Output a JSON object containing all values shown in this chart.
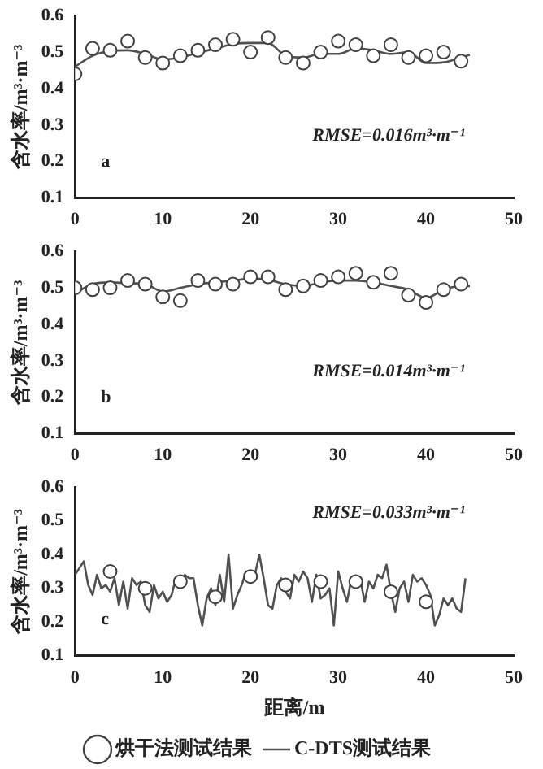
{
  "chart_data": [
    {
      "type": "line",
      "ylabel": "含水率/m³·m⁻³",
      "xlim": [
        0,
        50
      ],
      "xticks": [
        0,
        10,
        20,
        30,
        40,
        50
      ],
      "ylim": [
        0.1,
        0.6
      ],
      "yticks": [
        0.1,
        0.2,
        0.3,
        0.4,
        0.5,
        0.6
      ],
      "grid": false,
      "legend": false,
      "annotations": [
        "a",
        "RMSE=0.016m³·m⁻¹"
      ],
      "series": [
        {
          "type": "scatter",
          "marker": "circle",
          "color": "#404040",
          "x": [
            0,
            2,
            4,
            6,
            8,
            10,
            12,
            14,
            16,
            18,
            20,
            22,
            24,
            26,
            28,
            30,
            32,
            34,
            36,
            38,
            40,
            42,
            44
          ],
          "values": [
            0.44,
            0.51,
            0.505,
            0.53,
            0.485,
            0.47,
            0.49,
            0.505,
            0.52,
            0.535,
            0.5,
            0.54,
            0.485,
            0.47,
            0.5,
            0.53,
            0.52,
            0.49,
            0.52,
            0.485,
            0.49,
            0.5,
            0.475
          ]
        },
        {
          "type": "line",
          "marker": "none",
          "color": "#505050",
          "x": [
            0,
            2,
            4,
            6,
            8,
            10,
            12,
            14,
            16,
            18,
            20,
            22,
            24,
            26,
            28,
            30,
            32,
            34,
            36,
            38,
            40,
            42,
            44,
            45
          ],
          "values": [
            0.46,
            0.49,
            0.503,
            0.505,
            0.495,
            0.48,
            0.485,
            0.498,
            0.51,
            0.522,
            0.525,
            0.525,
            0.49,
            0.485,
            0.495,
            0.495,
            0.51,
            0.505,
            0.495,
            0.5,
            0.47,
            0.472,
            0.485,
            0.493
          ]
        }
      ]
    },
    {
      "type": "line",
      "ylabel": "含水率/m³·m⁻³",
      "xlim": [
        0,
        50
      ],
      "xticks": [
        0,
        10,
        20,
        30,
        40,
        50
      ],
      "ylim": [
        0.1,
        0.6
      ],
      "yticks": [
        0.1,
        0.2,
        0.3,
        0.4,
        0.5,
        0.6
      ],
      "grid": false,
      "legend": false,
      "annotations": [
        "b",
        "RMSE=0.014m³·m⁻¹"
      ],
      "series": [
        {
          "type": "scatter",
          "marker": "circle",
          "color": "#404040",
          "x": [
            0,
            2,
            4,
            6,
            8,
            10,
            12,
            14,
            16,
            18,
            20,
            22,
            24,
            26,
            28,
            30,
            32,
            34,
            36,
            38,
            40,
            42,
            44
          ],
          "values": [
            0.5,
            0.495,
            0.5,
            0.52,
            0.51,
            0.475,
            0.465,
            0.52,
            0.51,
            0.51,
            0.53,
            0.53,
            0.495,
            0.505,
            0.52,
            0.53,
            0.54,
            0.515,
            0.54,
            0.48,
            0.46,
            0.495,
            0.51
          ]
        },
        {
          "type": "line",
          "marker": "none",
          "color": "#505050",
          "x": [
            0,
            2,
            4,
            6,
            8,
            10,
            12,
            14,
            16,
            18,
            20,
            22,
            24,
            26,
            28,
            30,
            32,
            34,
            36,
            38,
            40,
            42,
            44,
            45
          ],
          "values": [
            0.485,
            0.51,
            0.515,
            0.513,
            0.51,
            0.49,
            0.5,
            0.51,
            0.515,
            0.52,
            0.525,
            0.522,
            0.51,
            0.505,
            0.515,
            0.52,
            0.52,
            0.515,
            0.505,
            0.495,
            0.472,
            0.495,
            0.505,
            0.505
          ]
        }
      ]
    },
    {
      "type": "line",
      "xlabel": "距离/m",
      "ylabel": "含水率/m³·m⁻³",
      "xlim": [
        0,
        50
      ],
      "xticks": [
        0,
        10,
        20,
        30,
        40,
        50
      ],
      "ylim": [
        0.1,
        0.6
      ],
      "yticks": [
        0.1,
        0.2,
        0.3,
        0.4,
        0.5,
        0.6
      ],
      "grid": false,
      "legend": "bottom",
      "annotations": [
        "c",
        "RMSE=0.033m³·m⁻¹"
      ],
      "series": [
        {
          "type": "scatter",
          "name": "烘干法测试结果",
          "marker": "circle",
          "color": "#404040",
          "x": [
            4,
            8,
            12,
            16,
            20,
            24,
            28,
            32,
            36,
            40
          ],
          "values": [
            0.35,
            0.3,
            0.32,
            0.275,
            0.335,
            0.31,
            0.32,
            0.32,
            0.29,
            0.26
          ]
        },
        {
          "type": "line",
          "name": "C-DTS测试结果",
          "marker": "none",
          "color": "#505050",
          "x": [
            0,
            0.5,
            1,
            1.5,
            2,
            2.5,
            3,
            3.5,
            4,
            4.5,
            5,
            5.5,
            6,
            6.5,
            7,
            7.5,
            8,
            8.5,
            9,
            9.5,
            10,
            10.5,
            11,
            11.5,
            12,
            12.5,
            13,
            13.5,
            14,
            14.5,
            15,
            15.5,
            16,
            16.5,
            17,
            17.5,
            18,
            18.5,
            19,
            19.5,
            20,
            20.5,
            21,
            21.5,
            22,
            22.5,
            23,
            23.5,
            24,
            24.5,
            25,
            25.5,
            26,
            26.5,
            27,
            27.5,
            28,
            28.5,
            29,
            29.5,
            30,
            30.5,
            31,
            31.5,
            32,
            32.5,
            33,
            33.5,
            34,
            34.5,
            35,
            35.5,
            36,
            36.5,
            37,
            37.5,
            38,
            38.5,
            39,
            39.5,
            40,
            40.5,
            41,
            41.5,
            42,
            42.5,
            43,
            43.5,
            44,
            44.5
          ],
          "values": [
            0.34,
            0.36,
            0.38,
            0.31,
            0.28,
            0.34,
            0.3,
            0.31,
            0.29,
            0.33,
            0.25,
            0.32,
            0.24,
            0.33,
            0.31,
            0.32,
            0.25,
            0.23,
            0.31,
            0.27,
            0.29,
            0.26,
            0.28,
            0.33,
            0.31,
            0.34,
            0.33,
            0.33,
            0.25,
            0.19,
            0.27,
            0.3,
            0.25,
            0.34,
            0.26,
            0.4,
            0.24,
            0.28,
            0.31,
            0.35,
            0.33,
            0.34,
            0.4,
            0.33,
            0.25,
            0.24,
            0.31,
            0.33,
            0.29,
            0.27,
            0.34,
            0.32,
            0.35,
            0.33,
            0.26,
            0.34,
            0.27,
            0.28,
            0.3,
            0.19,
            0.35,
            0.3,
            0.26,
            0.33,
            0.31,
            0.33,
            0.26,
            0.32,
            0.3,
            0.34,
            0.33,
            0.37,
            0.29,
            0.23,
            0.3,
            0.32,
            0.26,
            0.34,
            0.32,
            0.33,
            0.31,
            0.28,
            0.19,
            0.22,
            0.27,
            0.25,
            0.27,
            0.24,
            0.23,
            0.33
          ]
        }
      ]
    }
  ]
}
